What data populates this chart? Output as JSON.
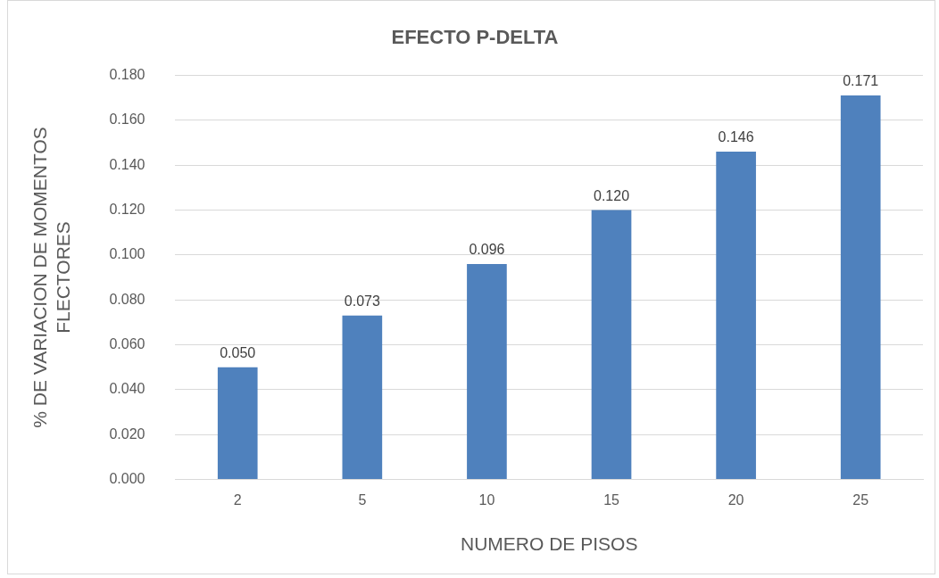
{
  "chart_data": {
    "type": "bar",
    "title": "EFECTO P-DELTA",
    "xlabel": "NUMERO DE PISOS",
    "ylabel": "% DE VARIACION DE MOMENTOS FLECTORES",
    "categories": [
      "2",
      "5",
      "10",
      "15",
      "20",
      "25"
    ],
    "values": [
      0.05,
      0.073,
      0.096,
      0.12,
      0.146,
      0.171
    ],
    "value_labels": [
      "0.050",
      "0.073",
      "0.096",
      "0.120",
      "0.146",
      "0.171"
    ],
    "color": "#4f81bd",
    "ylim": [
      0,
      0.18
    ],
    "yticks": [
      {
        "value": 0,
        "label": "0.000"
      },
      {
        "value": 0.02,
        "label": "0.020"
      },
      {
        "value": 0.04,
        "label": "0.040"
      },
      {
        "value": 0.06,
        "label": "0.060"
      },
      {
        "value": 0.08,
        "label": "0.080"
      },
      {
        "value": 0.1,
        "label": "0.100"
      },
      {
        "value": 0.12,
        "label": "0.120"
      },
      {
        "value": 0.14,
        "label": "0.140"
      },
      {
        "value": 0.16,
        "label": "0.160"
      },
      {
        "value": 0.18,
        "label": "0.180"
      }
    ],
    "grid": "y",
    "legend": false
  }
}
